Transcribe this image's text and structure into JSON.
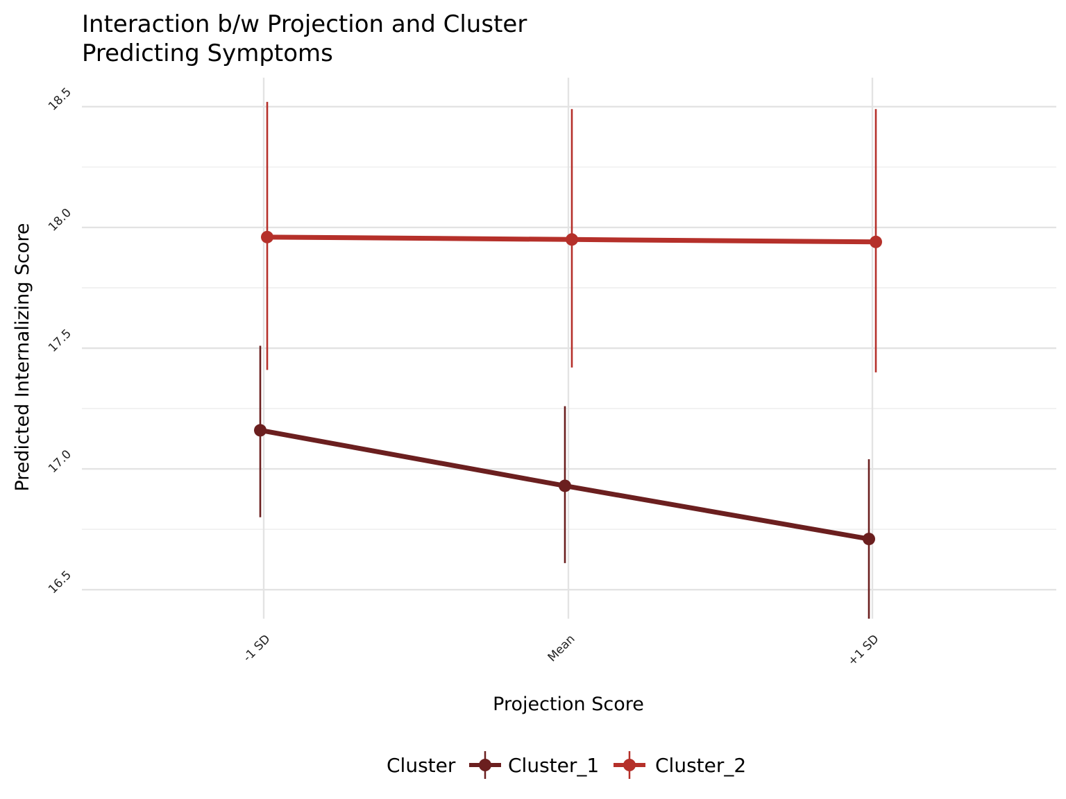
{
  "chart_data": {
    "type": "line",
    "title_lines": [
      "Interaction b/w Projection and Cluster",
      "Predicting Symptoms"
    ],
    "xlabel": "Projection Score",
    "ylabel": "Predicted Internalizing Score",
    "categories": [
      "-1 SD",
      "Mean",
      "+1 SD"
    ],
    "yticks": [
      "16.5",
      "17.0",
      "17.5",
      "18.0",
      "18.5"
    ],
    "ylim": [
      16.38,
      18.62
    ],
    "grid": true,
    "legend": {
      "title": "Cluster",
      "position": "bottom"
    },
    "series": [
      {
        "name": "Cluster_1",
        "color": "#6b1f1f",
        "values": [
          17.16,
          16.93,
          16.71
        ],
        "lower": [
          16.8,
          16.61,
          16.38
        ],
        "upper": [
          17.51,
          17.26,
          17.04
        ]
      },
      {
        "name": "Cluster_2",
        "color": "#b5302a",
        "values": [
          17.96,
          17.95,
          17.94
        ],
        "lower": [
          17.41,
          17.42,
          17.4
        ],
        "upper": [
          18.52,
          18.49,
          18.49
        ]
      }
    ]
  }
}
